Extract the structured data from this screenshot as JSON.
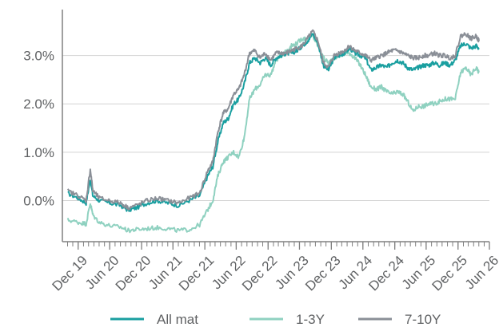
{
  "chart_data": {
    "type": "line",
    "title": "",
    "xlabel": "",
    "ylabel": "",
    "x_range": [
      "2019-10-01",
      "2026-06-30"
    ],
    "ylim": [
      -0.85,
      3.95
    ],
    "y_ticks": [
      0.0,
      1.0,
      2.0,
      3.0
    ],
    "y_tick_labels": [
      "0.0%",
      "1.0%",
      "2.0%",
      "3.0%"
    ],
    "x_tick_dates": [
      "2019-12-31",
      "2020-06-30",
      "2020-12-31",
      "2021-06-30",
      "2021-12-31",
      "2022-06-30",
      "2022-12-31",
      "2023-06-30",
      "2023-12-31",
      "2024-06-30",
      "2024-12-31",
      "2025-06-30",
      "2025-12-31",
      "2026-06-30"
    ],
    "x_tick_labels": [
      "Dec 19",
      "Jun 20",
      "Dec 20",
      "Jun 21",
      "Dec 21",
      "Jun 22",
      "Dec 22",
      "Jun 23",
      "Dec 23",
      "Jun 24",
      "Dec 24",
      "Jun 25",
      "Dec 25",
      "Jun 26"
    ],
    "grid": true,
    "legend_position": "bottom",
    "series": [
      {
        "name": "All mat",
        "color": "#1a9fa0",
        "points": [
          [
            "2019-11-01",
            0.15
          ],
          [
            "2020-01-01",
            0.05
          ],
          [
            "2020-02-15",
            -0.05
          ],
          [
            "2020-03-10",
            0.45
          ],
          [
            "2020-03-25",
            0.1
          ],
          [
            "2020-05-01",
            0.0
          ],
          [
            "2020-07-01",
            -0.05
          ],
          [
            "2020-09-01",
            -0.1
          ],
          [
            "2020-10-15",
            -0.2
          ],
          [
            "2020-12-01",
            -0.15
          ],
          [
            "2021-02-01",
            -0.05
          ],
          [
            "2021-04-01",
            0.0
          ],
          [
            "2021-06-01",
            -0.05
          ],
          [
            "2021-08-01",
            -0.1
          ],
          [
            "2021-10-01",
            0.0
          ],
          [
            "2021-12-01",
            0.1
          ],
          [
            "2022-01-15",
            0.5
          ],
          [
            "2022-02-15",
            0.7
          ],
          [
            "2022-03-15",
            1.2
          ],
          [
            "2022-04-15",
            1.6
          ],
          [
            "2022-05-15",
            1.7
          ],
          [
            "2022-06-15",
            2.0
          ],
          [
            "2022-07-15",
            2.1
          ],
          [
            "2022-08-15",
            2.4
          ],
          [
            "2022-09-15",
            2.85
          ],
          [
            "2022-10-15",
            2.95
          ],
          [
            "2022-11-15",
            2.85
          ],
          [
            "2022-12-15",
            2.95
          ],
          [
            "2023-01-15",
            2.8
          ],
          [
            "2023-02-15",
            2.95
          ],
          [
            "2023-03-15",
            3.0
          ],
          [
            "2023-04-15",
            3.05
          ],
          [
            "2023-05-15",
            3.05
          ],
          [
            "2023-06-15",
            3.1
          ],
          [
            "2023-07-15",
            3.2
          ],
          [
            "2023-08-15",
            3.3
          ],
          [
            "2023-09-15",
            3.45
          ],
          [
            "2023-10-15",
            3.25
          ],
          [
            "2023-11-15",
            2.8
          ],
          [
            "2023-12-15",
            2.7
          ],
          [
            "2024-01-15",
            2.95
          ],
          [
            "2024-02-15",
            3.0
          ],
          [
            "2024-03-15",
            3.05
          ],
          [
            "2024-04-15",
            3.15
          ],
          [
            "2024-05-15",
            3.05
          ],
          [
            "2024-06-15",
            3.0
          ],
          [
            "2024-07-15",
            2.95
          ],
          [
            "2024-08-15",
            2.7
          ],
          [
            "2024-09-15",
            2.75
          ],
          [
            "2024-10-15",
            2.8
          ],
          [
            "2024-11-15",
            2.75
          ],
          [
            "2024-12-15",
            2.85
          ],
          [
            "2025-01-15",
            2.9
          ],
          [
            "2025-02-15",
            2.85
          ],
          [
            "2025-03-15",
            2.75
          ],
          [
            "2025-04-15",
            2.7
          ],
          [
            "2025-05-15",
            2.75
          ],
          [
            "2025-06-15",
            2.8
          ],
          [
            "2025-07-15",
            2.8
          ],
          [
            "2025-08-15",
            2.85
          ],
          [
            "2025-09-15",
            2.8
          ],
          [
            "2025-10-15",
            2.85
          ],
          [
            "2025-11-15",
            2.8
          ],
          [
            "2025-12-15",
            2.9
          ],
          [
            "2026-01-15",
            3.2
          ],
          [
            "2026-02-15",
            3.25
          ],
          [
            "2026-03-15",
            3.15
          ],
          [
            "2026-04-15",
            3.2
          ],
          [
            "2026-05-01",
            3.15
          ]
        ]
      },
      {
        "name": "1-3Y",
        "color": "#8fd1c0",
        "points": [
          [
            "2019-11-01",
            -0.4
          ],
          [
            "2020-01-01",
            -0.45
          ],
          [
            "2020-02-15",
            -0.48
          ],
          [
            "2020-03-10",
            -0.05
          ],
          [
            "2020-03-25",
            -0.3
          ],
          [
            "2020-05-01",
            -0.45
          ],
          [
            "2020-07-01",
            -0.52
          ],
          [
            "2020-09-01",
            -0.55
          ],
          [
            "2020-10-15",
            -0.62
          ],
          [
            "2020-12-01",
            -0.6
          ],
          [
            "2021-02-01",
            -0.58
          ],
          [
            "2021-04-01",
            -0.56
          ],
          [
            "2021-06-01",
            -0.58
          ],
          [
            "2021-08-01",
            -0.62
          ],
          [
            "2021-10-01",
            -0.6
          ],
          [
            "2021-12-01",
            -0.5
          ],
          [
            "2022-01-15",
            -0.2
          ],
          [
            "2022-02-15",
            0.0
          ],
          [
            "2022-03-15",
            0.5
          ],
          [
            "2022-04-15",
            0.8
          ],
          [
            "2022-05-15",
            0.9
          ],
          [
            "2022-06-15",
            1.0
          ],
          [
            "2022-07-15",
            0.9
          ],
          [
            "2022-08-15",
            1.3
          ],
          [
            "2022-09-15",
            2.1
          ],
          [
            "2022-10-15",
            2.3
          ],
          [
            "2022-11-15",
            2.4
          ],
          [
            "2022-12-15",
            2.6
          ],
          [
            "2023-01-15",
            2.6
          ],
          [
            "2023-02-15",
            2.9
          ],
          [
            "2023-03-15",
            3.0
          ],
          [
            "2023-04-15",
            3.1
          ],
          [
            "2023-05-15",
            3.2
          ],
          [
            "2023-06-15",
            3.25
          ],
          [
            "2023-07-15",
            3.35
          ],
          [
            "2023-08-15",
            3.35
          ],
          [
            "2023-09-15",
            3.4
          ],
          [
            "2023-10-15",
            3.2
          ],
          [
            "2023-11-15",
            2.95
          ],
          [
            "2023-12-15",
            2.85
          ],
          [
            "2024-01-15",
            2.95
          ],
          [
            "2024-02-15",
            3.0
          ],
          [
            "2024-03-15",
            3.05
          ],
          [
            "2024-04-15",
            3.05
          ],
          [
            "2024-05-15",
            2.95
          ],
          [
            "2024-06-15",
            2.8
          ],
          [
            "2024-07-15",
            2.6
          ],
          [
            "2024-08-15",
            2.35
          ],
          [
            "2024-09-15",
            2.3
          ],
          [
            "2024-10-15",
            2.35
          ],
          [
            "2024-11-15",
            2.25
          ],
          [
            "2024-12-15",
            2.2
          ],
          [
            "2025-01-15",
            2.25
          ],
          [
            "2025-02-15",
            2.2
          ],
          [
            "2025-03-15",
            2.05
          ],
          [
            "2025-04-15",
            1.85
          ],
          [
            "2025-05-15",
            1.95
          ],
          [
            "2025-06-15",
            1.95
          ],
          [
            "2025-07-15",
            2.0
          ],
          [
            "2025-08-15",
            2.0
          ],
          [
            "2025-09-15",
            2.05
          ],
          [
            "2025-10-15",
            2.1
          ],
          [
            "2025-11-15",
            2.1
          ],
          [
            "2025-12-15",
            2.1
          ],
          [
            "2026-01-15",
            2.65
          ],
          [
            "2026-02-15",
            2.75
          ],
          [
            "2026-03-15",
            2.6
          ],
          [
            "2026-04-15",
            2.75
          ],
          [
            "2026-05-01",
            2.65
          ]
        ]
      },
      {
        "name": "7-10Y",
        "color": "#8a8f97",
        "points": [
          [
            "2019-11-01",
            0.2
          ],
          [
            "2020-01-01",
            0.1
          ],
          [
            "2020-02-15",
            0.0
          ],
          [
            "2020-03-10",
            0.65
          ],
          [
            "2020-03-25",
            0.2
          ],
          [
            "2020-05-01",
            0.05
          ],
          [
            "2020-07-01",
            0.0
          ],
          [
            "2020-09-01",
            -0.05
          ],
          [
            "2020-10-15",
            -0.15
          ],
          [
            "2020-12-01",
            -0.1
          ],
          [
            "2021-02-01",
            0.0
          ],
          [
            "2021-04-01",
            0.05
          ],
          [
            "2021-06-01",
            0.0
          ],
          [
            "2021-08-01",
            -0.05
          ],
          [
            "2021-10-01",
            0.05
          ],
          [
            "2021-12-01",
            0.15
          ],
          [
            "2022-01-15",
            0.6
          ],
          [
            "2022-02-15",
            0.8
          ],
          [
            "2022-03-15",
            1.4
          ],
          [
            "2022-04-15",
            1.8
          ],
          [
            "2022-05-15",
            1.9
          ],
          [
            "2022-06-15",
            2.2
          ],
          [
            "2022-07-15",
            2.3
          ],
          [
            "2022-08-15",
            2.6
          ],
          [
            "2022-09-15",
            3.05
          ],
          [
            "2022-10-15",
            3.1
          ],
          [
            "2022-11-15",
            2.95
          ],
          [
            "2022-12-15",
            3.05
          ],
          [
            "2023-01-15",
            2.9
          ],
          [
            "2023-02-15",
            3.05
          ],
          [
            "2023-03-15",
            3.05
          ],
          [
            "2023-04-15",
            3.05
          ],
          [
            "2023-05-15",
            3.1
          ],
          [
            "2023-06-15",
            3.15
          ],
          [
            "2023-07-15",
            3.2
          ],
          [
            "2023-08-15",
            3.35
          ],
          [
            "2023-09-15",
            3.5
          ],
          [
            "2023-10-15",
            3.3
          ],
          [
            "2023-11-15",
            2.85
          ],
          [
            "2023-12-15",
            2.75
          ],
          [
            "2024-01-15",
            3.0
          ],
          [
            "2024-02-15",
            3.05
          ],
          [
            "2024-03-15",
            3.1
          ],
          [
            "2024-04-15",
            3.2
          ],
          [
            "2024-05-15",
            3.1
          ],
          [
            "2024-06-15",
            3.05
          ],
          [
            "2024-07-15",
            3.0
          ],
          [
            "2024-08-15",
            2.9
          ],
          [
            "2024-09-15",
            2.95
          ],
          [
            "2024-10-15",
            3.0
          ],
          [
            "2024-11-15",
            3.05
          ],
          [
            "2024-12-15",
            3.1
          ],
          [
            "2025-01-15",
            3.1
          ],
          [
            "2025-02-15",
            3.05
          ],
          [
            "2025-03-15",
            3.0
          ],
          [
            "2025-04-15",
            2.95
          ],
          [
            "2025-05-15",
            2.95
          ],
          [
            "2025-06-15",
            3.0
          ],
          [
            "2025-07-15",
            3.0
          ],
          [
            "2025-08-15",
            3.05
          ],
          [
            "2025-09-15",
            3.0
          ],
          [
            "2025-10-15",
            3.0
          ],
          [
            "2025-11-15",
            2.95
          ],
          [
            "2025-12-15",
            3.0
          ],
          [
            "2026-01-15",
            3.4
          ],
          [
            "2026-02-15",
            3.45
          ],
          [
            "2026-03-15",
            3.35
          ],
          [
            "2026-04-15",
            3.4
          ],
          [
            "2026-05-01",
            3.3
          ]
        ]
      }
    ]
  }
}
